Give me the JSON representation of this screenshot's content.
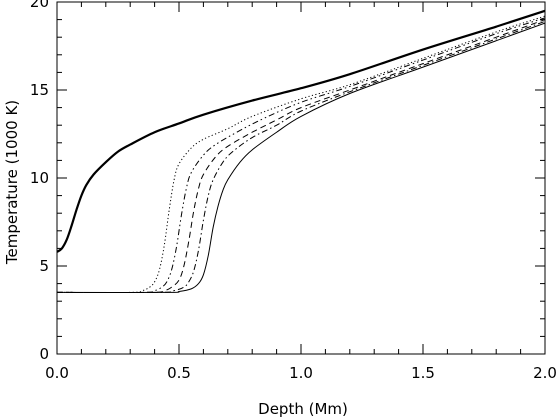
{
  "chart_data": {
    "type": "line",
    "xlabel": "Depth (Mm)",
    "ylabel": "Temperature (1000 K)",
    "xlim": [
      0.0,
      2.0
    ],
    "ylim": [
      0,
      20
    ],
    "xticks": [
      0.0,
      0.5,
      1.0,
      1.5,
      2.0
    ],
    "xtick_labels": [
      "0.0",
      "0.5",
      "1.0",
      "1.5",
      "2.0"
    ],
    "yticks": [
      0,
      5,
      10,
      15,
      20
    ],
    "ytick_labels": [
      "0",
      "5",
      "10",
      "15",
      "20"
    ],
    "grid": false,
    "legend": "none",
    "series": [
      {
        "style": "solid",
        "weight": "thick",
        "x": [
          0.0,
          0.02,
          0.04,
          0.06,
          0.08,
          0.1,
          0.12,
          0.15,
          0.2,
          0.25,
          0.3,
          0.4,
          0.5,
          0.6,
          0.8,
          1.0,
          1.2,
          1.5,
          1.8,
          2.0
        ],
        "y": [
          5.8,
          6.0,
          6.5,
          7.3,
          8.2,
          9.0,
          9.6,
          10.2,
          10.9,
          11.5,
          11.9,
          12.6,
          13.1,
          13.6,
          14.4,
          15.1,
          15.9,
          17.3,
          18.6,
          19.5
        ]
      },
      {
        "style": "dotted",
        "weight": "thin",
        "x": [
          0.0,
          0.3,
          0.35,
          0.38,
          0.4,
          0.42,
          0.44,
          0.46,
          0.48,
          0.5,
          0.55,
          0.6,
          0.7,
          0.8,
          1.0,
          1.2,
          1.5,
          1.8,
          2.0
        ],
        "y": [
          3.5,
          3.5,
          3.6,
          3.8,
          4.1,
          4.8,
          6.2,
          8.2,
          9.9,
          10.8,
          11.7,
          12.2,
          12.8,
          13.5,
          14.5,
          15.3,
          16.8,
          18.3,
          19.2
        ]
      },
      {
        "style": "dash-dot-dot",
        "weight": "thin",
        "x": [
          0.0,
          0.35,
          0.4,
          0.43,
          0.45,
          0.47,
          0.49,
          0.51,
          0.53,
          0.55,
          0.6,
          0.65,
          0.75,
          0.85,
          1.0,
          1.2,
          1.5,
          1.8,
          2.0
        ],
        "y": [
          3.5,
          3.5,
          3.6,
          3.8,
          4.1,
          4.8,
          6.1,
          7.9,
          9.4,
          10.3,
          11.3,
          11.9,
          12.7,
          13.4,
          14.3,
          15.2,
          16.7,
          18.2,
          19.1
        ]
      },
      {
        "style": "dashed",
        "weight": "thin",
        "x": [
          0.0,
          0.38,
          0.44,
          0.47,
          0.5,
          0.52,
          0.54,
          0.56,
          0.58,
          0.6,
          0.65,
          0.7,
          0.8,
          0.9,
          1.0,
          1.2,
          1.5,
          1.8,
          2.0
        ],
        "y": [
          3.5,
          3.5,
          3.6,
          3.8,
          4.2,
          5.0,
          6.4,
          8.1,
          9.4,
          10.2,
          11.2,
          11.8,
          12.6,
          13.3,
          14.0,
          15.0,
          16.5,
          18.0,
          19.0
        ]
      },
      {
        "style": "dash-dot",
        "weight": "thin",
        "x": [
          0.0,
          0.42,
          0.48,
          0.52,
          0.54,
          0.56,
          0.58,
          0.6,
          0.62,
          0.64,
          0.68,
          0.72,
          0.8,
          0.9,
          1.0,
          1.2,
          1.5,
          1.8,
          2.0
        ],
        "y": [
          3.5,
          3.5,
          3.6,
          3.8,
          4.1,
          4.7,
          5.9,
          7.6,
          9.0,
          9.9,
          10.9,
          11.5,
          12.3,
          13.0,
          13.8,
          14.9,
          16.4,
          17.9,
          18.9
        ]
      },
      {
        "style": "solid",
        "weight": "thin",
        "x": [
          0.0,
          0.45,
          0.5,
          0.55,
          0.58,
          0.6,
          0.62,
          0.64,
          0.66,
          0.68,
          0.7,
          0.75,
          0.8,
          0.9,
          1.0,
          1.2,
          1.5,
          1.8,
          2.0
        ],
        "y": [
          3.5,
          3.5,
          3.55,
          3.7,
          4.0,
          4.5,
          5.6,
          7.2,
          8.4,
          9.3,
          9.9,
          10.9,
          11.6,
          12.6,
          13.5,
          14.8,
          16.3,
          17.8,
          18.8
        ]
      }
    ]
  }
}
